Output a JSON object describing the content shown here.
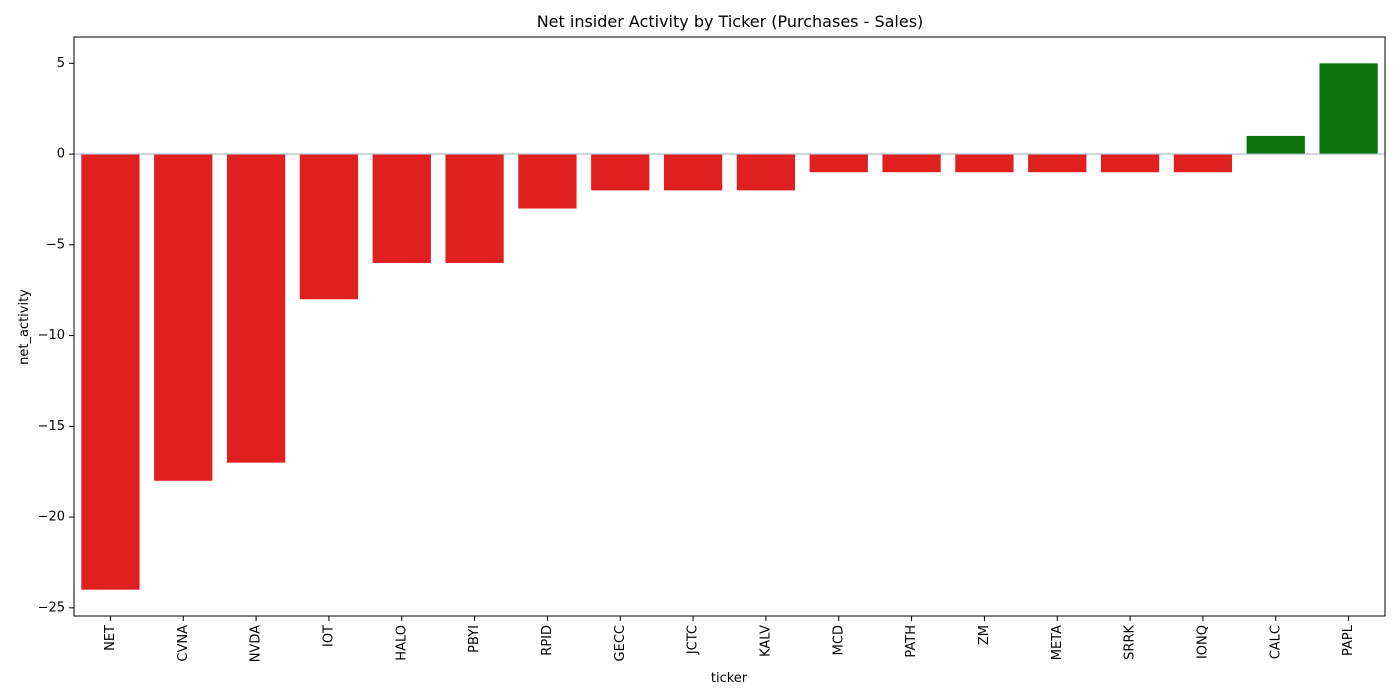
{
  "chart_data": {
    "type": "bar",
    "title": "Net insider Activity by Ticker (Purchases - Sales)",
    "xlabel": "ticker",
    "ylabel": "net_activity",
    "categories": [
      "NET",
      "CVNA",
      "NVDA",
      "IOT",
      "HALO",
      "PBYI",
      "RPID",
      "GECC",
      "JCTC",
      "KALV",
      "MCD",
      "PATH",
      "ZM",
      "META",
      "SRRK",
      "IONQ",
      "CALC",
      "PAPL"
    ],
    "values": [
      -24,
      -18,
      -17,
      -8,
      -6,
      -6,
      -3,
      -2,
      -2,
      -2,
      -1,
      -1,
      -1,
      -1,
      -1,
      -1,
      1,
      5
    ],
    "ylim": [
      -25.45,
      6.45
    ],
    "yticks": [
      5,
      0,
      -5,
      -10,
      -15,
      -20,
      -25
    ],
    "ytick_labels": [
      "5",
      "0",
      "−5",
      "−10",
      "−15",
      "−20",
      "−25"
    ],
    "colors": {
      "negative": "#e01f1f",
      "positive": "#0c760c",
      "zero_line": "#a9b6cf"
    },
    "grid": false,
    "legend": "none"
  }
}
